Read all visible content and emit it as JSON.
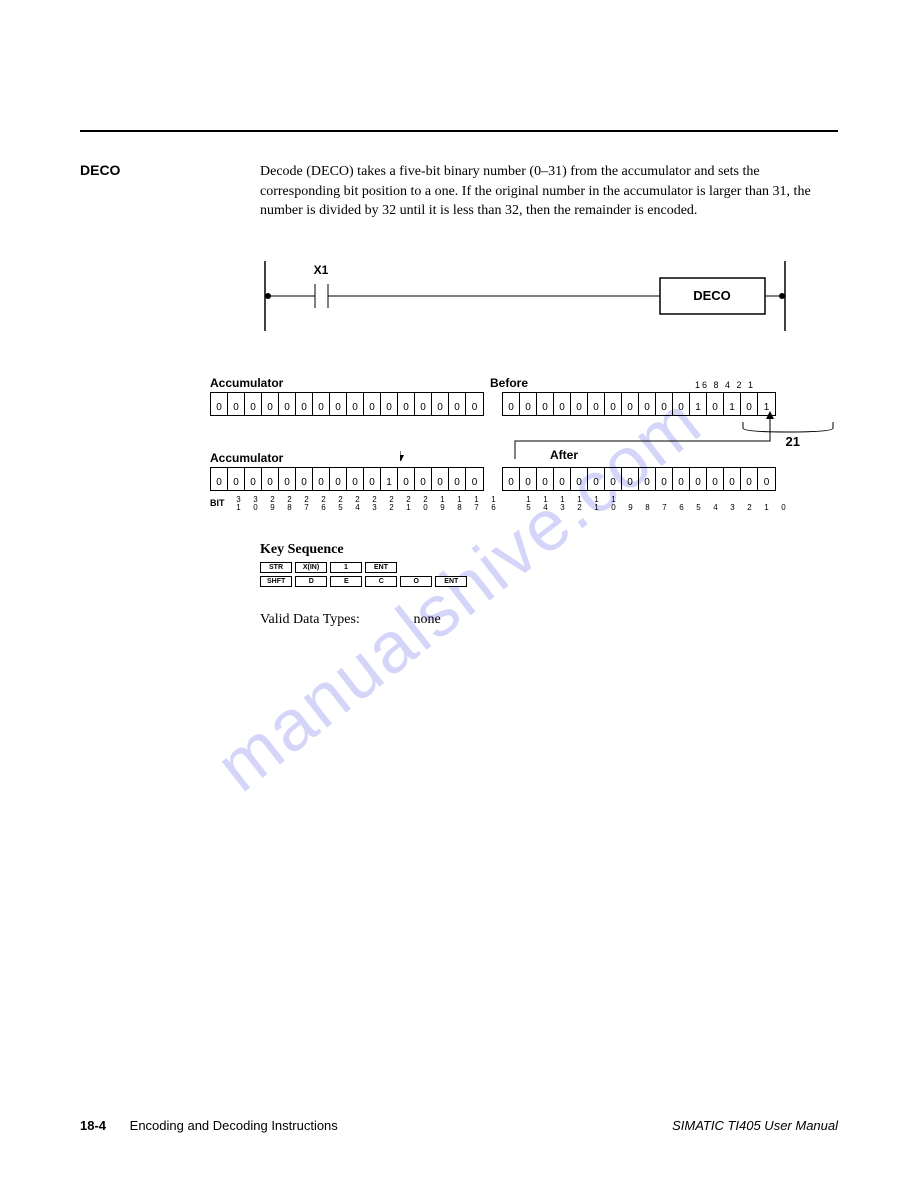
{
  "section_label": "DECO",
  "description": "Decode (DECO) takes a five-bit binary number (0–31) from the accumulator and sets the corresponding bit position to a one. If the original number in the accumulator is larger than 31, the number is divided by 32 until it is less than 32, then the remainder is encoded.",
  "ladder": {
    "contact_label": "X1",
    "box_label": "DECO"
  },
  "before": {
    "acc_label": "Accumulator",
    "state_label": "Before",
    "weights": "16 8  4  2  1",
    "left_bits": [
      "0",
      "0",
      "0",
      "0",
      "0",
      "0",
      "0",
      "0",
      "0",
      "0",
      "0",
      "0",
      "0",
      "0",
      "0",
      "0"
    ],
    "right_bits": [
      "0",
      "0",
      "0",
      "0",
      "0",
      "0",
      "0",
      "0",
      "0",
      "0",
      "0",
      "1",
      "0",
      "1",
      "0",
      "1"
    ],
    "value_label": "21"
  },
  "after": {
    "acc_label": "Accumulator",
    "state_label": "After",
    "left_bits": [
      "0",
      "0",
      "0",
      "0",
      "0",
      "0",
      "0",
      "0",
      "0",
      "0",
      "1",
      "0",
      "0",
      "0",
      "0",
      "0"
    ],
    "right_bits": [
      "0",
      "0",
      "0",
      "0",
      "0",
      "0",
      "0",
      "0",
      "0",
      "0",
      "0",
      "0",
      "0",
      "0",
      "0",
      "0"
    ]
  },
  "bit_index": {
    "prefix": "BIT",
    "top": [
      "3",
      "3",
      "2",
      "2",
      "2",
      "2",
      "2",
      "2",
      "2",
      "2",
      "2",
      "2",
      "1",
      "1",
      "1",
      "1",
      "1",
      "1",
      "1",
      "1",
      "1",
      "1",
      " ",
      " ",
      " ",
      " ",
      " ",
      " ",
      " ",
      " ",
      " ",
      " "
    ],
    "bottom": [
      "1",
      "0",
      "9",
      "8",
      "7",
      "6",
      "5",
      "4",
      "3",
      "2",
      "1",
      "0",
      "9",
      "8",
      "7",
      "6",
      "5",
      "4",
      "3",
      "2",
      "1",
      "0",
      "9",
      "8",
      "7",
      "6",
      "5",
      "4",
      "3",
      "2",
      "1",
      "0"
    ]
  },
  "key_sequence": {
    "title": "Key Sequence",
    "row1": [
      "STR",
      "X(IN)",
      "1",
      "ENT"
    ],
    "row2": [
      "SHFT",
      "D",
      "E",
      "C",
      "O",
      "ENT"
    ]
  },
  "valid_data": {
    "label": "Valid Data Types:",
    "value": "none"
  },
  "watermark": "manualshive.com",
  "footer": {
    "page": "18-4",
    "chapter": "Encoding and Decoding Instructions",
    "manual": "SIMATIC TI405 User Manual"
  },
  "colors": {
    "text": "#000000",
    "watermark": "#8a8af0"
  }
}
